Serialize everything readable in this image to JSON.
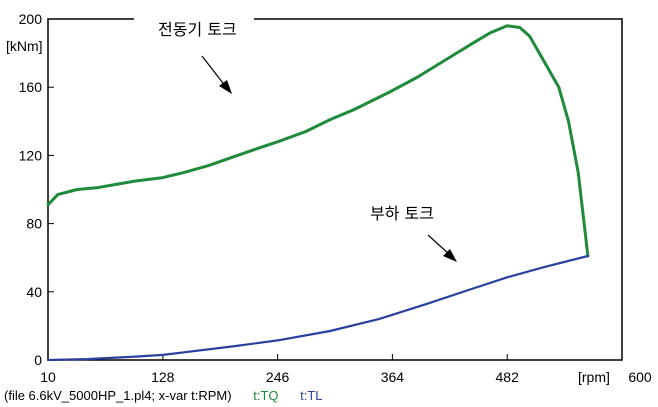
{
  "chart_data": {
    "type": "line",
    "ylabel_unit": "[kNm]",
    "xlabel_unit": "[rpm]",
    "xlim": [
      10,
      600
    ],
    "ylim": [
      0,
      200
    ],
    "x_ticks": [
      "10",
      "128",
      "246",
      "364",
      "482",
      "600"
    ],
    "y_ticks": [
      "0",
      "40",
      "80",
      "120",
      "160",
      "200"
    ],
    "series": [
      {
        "name": "t:TQ",
        "color": "#1e8a3a",
        "x": [
          10,
          20,
          40,
          60,
          80,
          100,
          128,
          150,
          175,
          200,
          225,
          246,
          275,
          300,
          325,
          350,
          364,
          390,
          410,
          430,
          450,
          465,
          482,
          495,
          505,
          520,
          535,
          545,
          555,
          565
        ],
        "y": [
          91,
          97,
          100,
          101,
          103,
          105,
          107,
          110,
          114,
          119,
          124,
          128,
          134,
          141,
          147,
          154,
          158,
          166,
          173,
          180,
          187,
          192,
          196,
          195,
          190,
          175,
          160,
          140,
          110,
          61
        ]
      },
      {
        "name": "t:TL",
        "color": "#2b3f9e",
        "x": [
          10,
          50,
          100,
          128,
          150,
          200,
          246,
          300,
          350,
          364,
          400,
          450,
          482,
          520,
          565
        ],
        "y": [
          0,
          0.5,
          2,
          3,
          4.5,
          8,
          11.5,
          17,
          24,
          26.5,
          33,
          42.5,
          48.5,
          54.5,
          61
        ]
      }
    ],
    "annotations": [
      {
        "text": "전동기 토크",
        "target": "t:TQ"
      },
      {
        "text": "부하 토크",
        "target": "t:TL"
      }
    ]
  },
  "footer": {
    "file_info": "(file 6.6kV_5000HP_1.pl4; x-var t:RPM)",
    "legend": [
      {
        "label": "t:TQ",
        "color": "#1e8a3a"
      },
      {
        "label": "t:TL",
        "color": "#2b3f9e"
      }
    ]
  }
}
